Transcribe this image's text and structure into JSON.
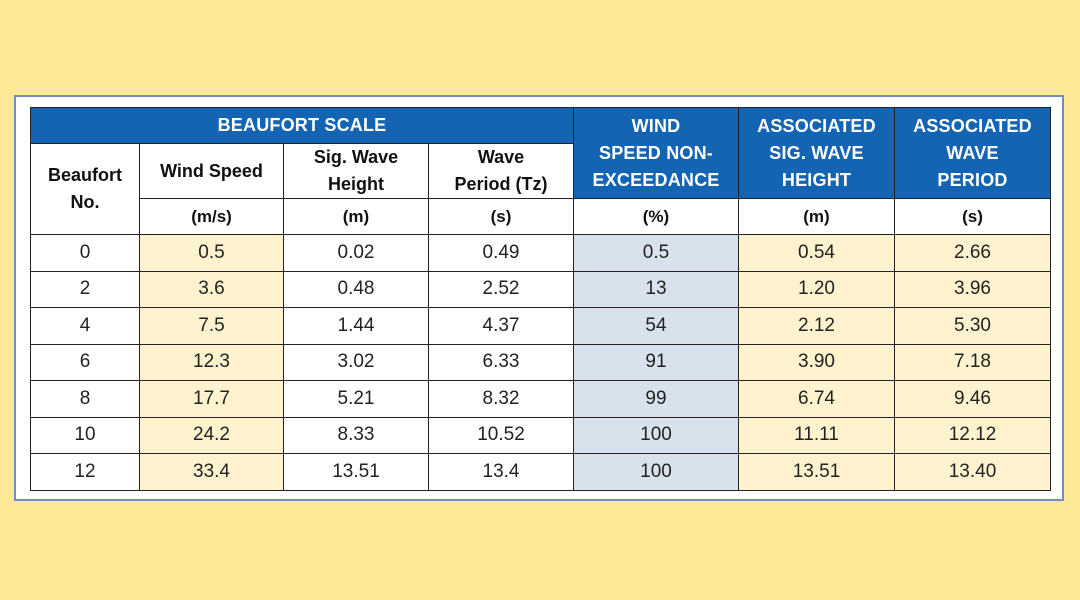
{
  "table": {
    "group_header": "BEAUFORT SCALE",
    "col_headers": [
      "Beaufort No.",
      "Wind Speed",
      "Sig. Wave Height",
      "Wave Period (Tz)",
      "WIND SPEED NON-EXCEEDANCE",
      "ASSOCIATED SIG. WAVE HEIGHT",
      "ASSOCIATED WAVE PERIOD"
    ],
    "col_header_lines": {
      "beaufort": [
        "Beaufort",
        "No."
      ],
      "wave_height": [
        "Sig. Wave",
        "Height"
      ],
      "wave_period": [
        "Wave",
        "Period (Tz)"
      ],
      "non_exceedance": [
        "WIND",
        "SPEED NON-",
        "EXCEEDANCE"
      ],
      "assoc_height": [
        "ASSOCIATED",
        "SIG. WAVE",
        "HEIGHT"
      ],
      "assoc_period": [
        "ASSOCIATED",
        "WAVE",
        "PERIOD"
      ]
    },
    "units": [
      "(m/s)",
      "(m)",
      "(s)",
      "(%)",
      "(m)",
      "(s)"
    ],
    "rows": [
      [
        "0",
        "0.5",
        "0.02",
        "0.49",
        "0.5",
        "0.54",
        "2.66"
      ],
      [
        "2",
        "3.6",
        "0.48",
        "2.52",
        "13",
        "1.20",
        "3.96"
      ],
      [
        "4",
        "7.5",
        "1.44",
        "4.37",
        "54",
        "2.12",
        "5.30"
      ],
      [
        "6",
        "12.3",
        "3.02",
        "6.33",
        "91",
        "3.90",
        "7.18"
      ],
      [
        "8",
        "17.7",
        "5.21",
        "8.32",
        "99",
        "6.74",
        "9.46"
      ],
      [
        "10",
        "24.2",
        "8.33",
        "10.52",
        "100",
        "11.11",
        "12.12"
      ],
      [
        "12",
        "33.4",
        "13.51",
        "13.4",
        "100",
        "13.51",
        "13.40"
      ]
    ]
  },
  "colors": {
    "page_background": "#fde895",
    "header_blue": "#1464b4",
    "cell_yellow": "#fff3cf",
    "cell_blue": "#d7e2ec",
    "frame_border": "#6f8fc6"
  }
}
